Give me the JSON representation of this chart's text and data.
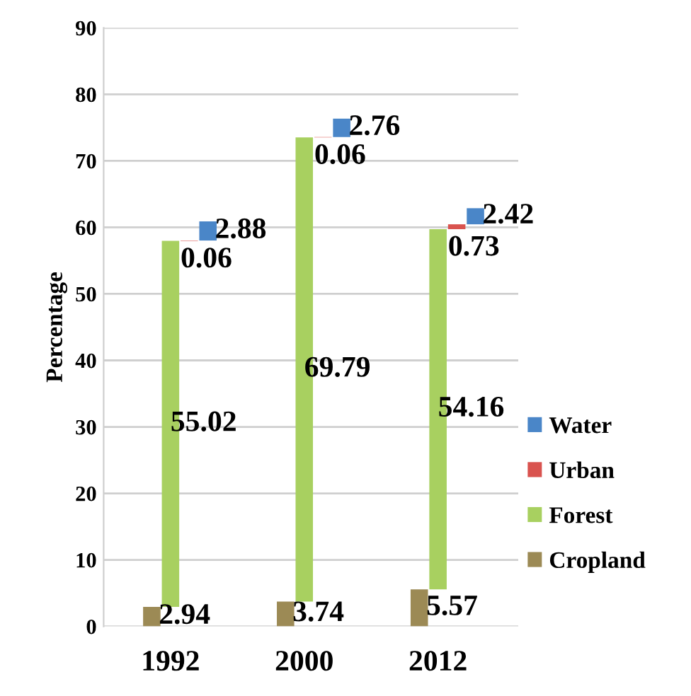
{
  "chart_data": {
    "type": "bar",
    "stacked": true,
    "ylabel": "Percentage",
    "categories": [
      "1992",
      "2000",
      "2012"
    ],
    "series": [
      {
        "name": "Cropland",
        "color": "#9c8a55",
        "values": [
          2.94,
          3.74,
          5.57
        ]
      },
      {
        "name": "Forest",
        "color": "#a8d060",
        "values": [
          55.02,
          69.79,
          54.16
        ]
      },
      {
        "name": "Urban",
        "color": "#d9534f",
        "values": [
          0.06,
          0.06,
          0.73
        ]
      },
      {
        "name": "Water",
        "color": "#4a86c8",
        "values": [
          2.88,
          2.76,
          2.42
        ]
      }
    ],
    "ylim": [
      0,
      90
    ],
    "yticks": [
      0,
      10,
      20,
      30,
      40,
      50,
      60,
      70,
      80,
      90
    ],
    "grid": "y",
    "legend": "right",
    "data_labels": true
  }
}
